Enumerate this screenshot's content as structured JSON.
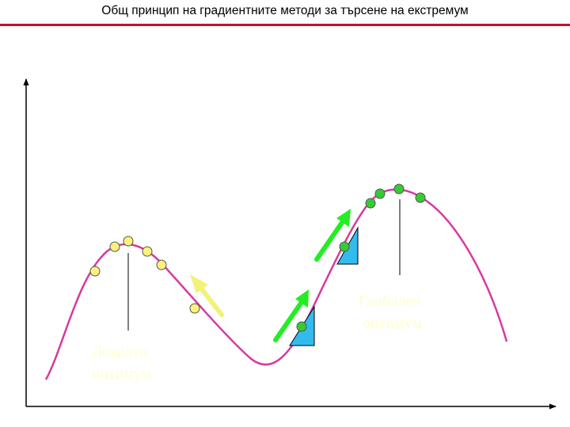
{
  "title": "Общ принцип на градиентните методи за търсене на екстремум",
  "labels": {
    "local": [
      "Локален",
      "оптимум"
    ],
    "global": [
      "Глобален",
      "оптимум"
    ]
  },
  "colors": {
    "title_rule": "#c8102e",
    "curve": "#d63aa0",
    "axis": "#000000",
    "local_point_fill": "#fff27a",
    "global_point_fill": "#33cc33",
    "yellow_arrow": "#f2f27a",
    "green_arrow": "#22ee22",
    "slope_triangle": "#33bbee",
    "label_text": "#ffffcc"
  },
  "legend_items": [
    {
      "name": "local-search-points",
      "count": 6,
      "color": "#fff27a"
    },
    {
      "name": "global-search-points",
      "count": 6,
      "color": "#33cc33"
    }
  ]
}
